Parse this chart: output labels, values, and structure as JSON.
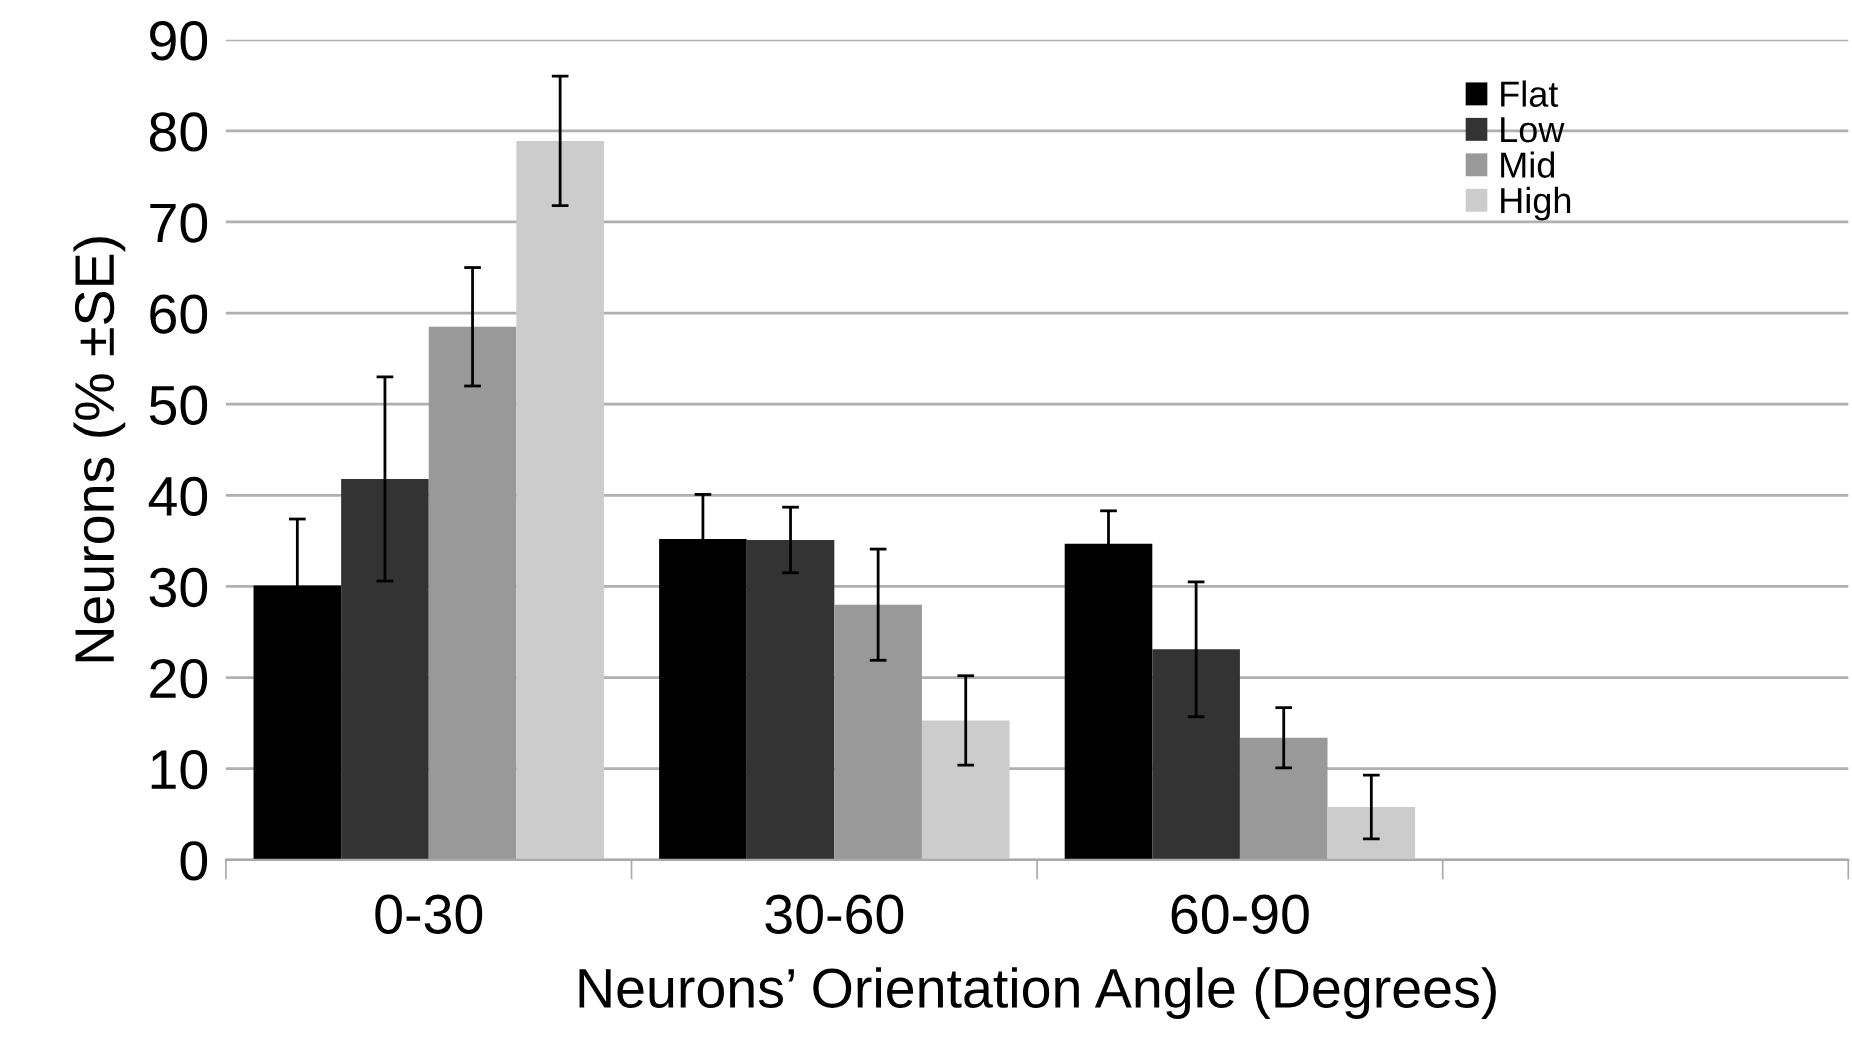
{
  "chart_data": {
    "type": "bar",
    "xlabel": "Neurons’ Orientation Angle (Degrees)",
    "ylabel": "Neurons (% ±SE)",
    "categories": [
      "0-30",
      "30-60",
      "60-90",
      null
    ],
    "series": [
      {
        "name": "Flat",
        "color": "#000000",
        "values": [
          30.1,
          35.2,
          34.7,
          null
        ],
        "errors": [
          7.3,
          4.9,
          3.6,
          null
        ]
      },
      {
        "name": "Low",
        "color": "#333333",
        "values": [
          41.8,
          35.1,
          23.1,
          null
        ],
        "errors": [
          11.2,
          3.6,
          7.4,
          null
        ]
      },
      {
        "name": "Mid",
        "color": "#999999",
        "values": [
          58.5,
          28.0,
          13.4,
          null
        ],
        "errors": [
          6.5,
          6.1,
          3.3,
          null
        ]
      },
      {
        "name": "High",
        "color": "#cccccc",
        "values": [
          78.9,
          15.3,
          5.8,
          null
        ],
        "errors": [
          7.1,
          4.9,
          3.5,
          null
        ]
      }
    ],
    "ylim": [
      0,
      90
    ],
    "yticks": [
      0,
      10,
      20,
      30,
      40,
      50,
      60,
      70,
      80,
      90
    ],
    "grid": "y",
    "legend": "top right"
  }
}
